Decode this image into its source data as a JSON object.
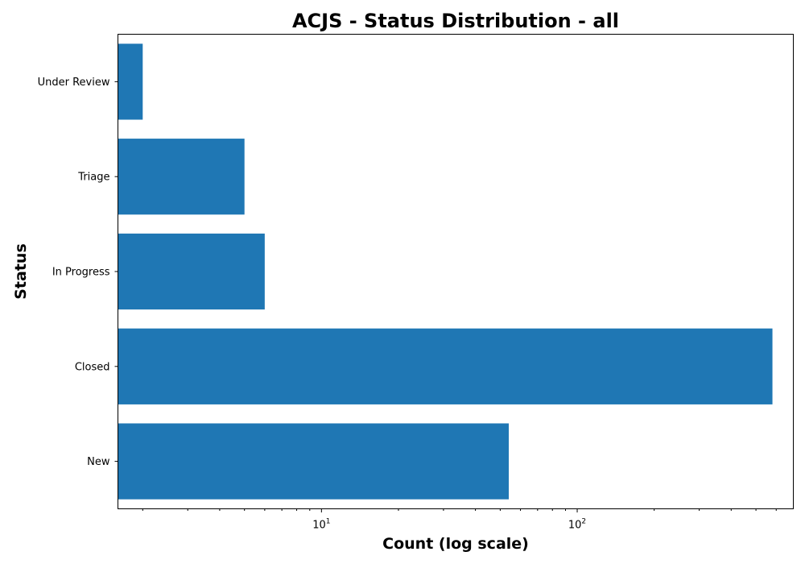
{
  "chart_data": {
    "type": "bar",
    "orientation": "horizontal",
    "title": "ACJS - Status Distribution - all",
    "xlabel": "Count (log scale)",
    "ylabel": "Status",
    "x_scale": "log",
    "xlim": [
      1.6,
      700
    ],
    "x_major_ticks": [
      10,
      100
    ],
    "x_major_tick_labels": [
      {
        "base": "10",
        "exp": "1"
      },
      {
        "base": "10",
        "exp": "2"
      }
    ],
    "x_minor_ticks": [
      2,
      3,
      4,
      5,
      6,
      7,
      8,
      9,
      20,
      30,
      40,
      50,
      60,
      70,
      80,
      90,
      200,
      300,
      400,
      500,
      600
    ],
    "categories": [
      "New",
      "Closed",
      "In Progress",
      "Triage",
      "Under Review"
    ],
    "values": [
      54,
      580,
      6,
      5,
      2
    ],
    "bar_color": "#1f77b4",
    "grid": false,
    "legend": "none"
  }
}
